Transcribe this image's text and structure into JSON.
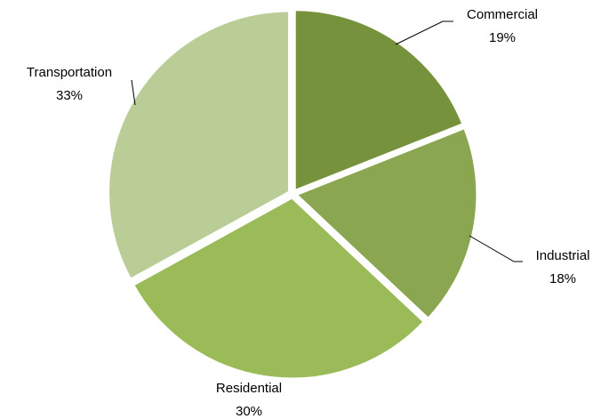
{
  "chart_data": {
    "type": "pie",
    "categories": [
      "Commercial",
      "Industrial",
      "Residential",
      "Transportation"
    ],
    "values": [
      19,
      18,
      30,
      33
    ],
    "value_labels": [
      "19%",
      "18%",
      "30%",
      "33%"
    ],
    "colors": [
      "#76923c",
      "#8aa650",
      "#9bbb59",
      "#bacd96"
    ]
  }
}
